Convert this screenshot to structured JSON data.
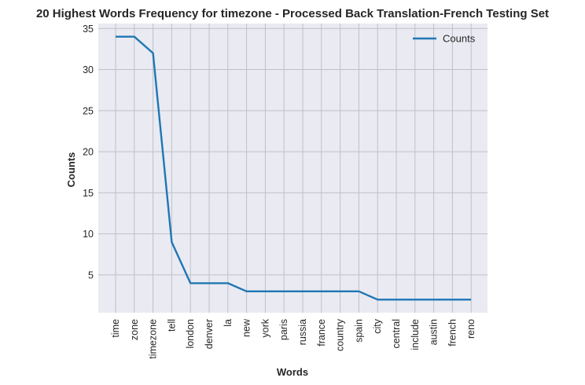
{
  "chart_data": {
    "type": "line",
    "title": "20 Highest Words Frequency for timezone - Processed Back Translation-French Testing Set",
    "xlabel": "Words",
    "ylabel": "Counts",
    "categories": [
      "time",
      "zone",
      "timezone",
      "tell",
      "london",
      "denver",
      "la",
      "new",
      "york",
      "paris",
      "russia",
      "france",
      "country",
      "spain",
      "city",
      "central",
      "include",
      "austin",
      "french",
      "reno"
    ],
    "series": [
      {
        "name": "Counts",
        "values": [
          34,
          34,
          32,
          9,
          4,
          4,
          4,
          3,
          3,
          3,
          3,
          3,
          3,
          3,
          2,
          2,
          2,
          2,
          2,
          2
        ],
        "color": "#1f77b4"
      }
    ],
    "ylim": [
      0.4,
      35.6
    ],
    "yticks": [
      5,
      10,
      15,
      20,
      25,
      30,
      35
    ],
    "grid": true,
    "legend_position": "top-right",
    "background": "#eaeaf2",
    "grid_color": "#c0c0c8"
  }
}
